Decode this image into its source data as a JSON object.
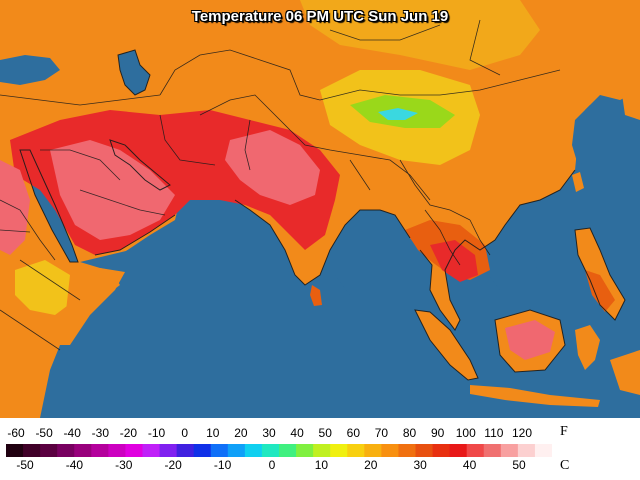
{
  "title": "Temperature 06 PM UTC Sun Jun 19",
  "colors": {
    "ocean": "#2e6e9e",
    "border": "#1a1a1a",
    "land_orange": "#f28a1a",
    "land_darkorange": "#e85f10",
    "land_red": "#e82a2a",
    "land_pink": "#f06870",
    "land_yellow": "#f2c21a",
    "land_green": "#9ad81a",
    "land_cyan": "#3ad8e0"
  },
  "legend": {
    "f_unit": "F",
    "c_unit": "C",
    "f_labels": [
      "-60",
      "-50",
      "-40",
      "-30",
      "-20",
      "-10",
      "0",
      "10",
      "20",
      "30",
      "40",
      "50",
      "60",
      "70",
      "80",
      "90",
      "100",
      "110",
      "120"
    ],
    "c_labels": [
      "-50",
      "-40",
      "-30",
      "-20",
      "-10",
      "0",
      "10",
      "20",
      "30",
      "40",
      "50"
    ],
    "bar_colors": [
      "#200010",
      "#400028",
      "#5a0040",
      "#780060",
      "#98007c",
      "#b4009c",
      "#cc00c0",
      "#e000e0",
      "#c020f8",
      "#8020f0",
      "#4020e0",
      "#1030e8",
      "#1070f8",
      "#10a0f8",
      "#10d0f0",
      "#20e8c0",
      "#40f080",
      "#80f040",
      "#c0f020",
      "#f0f010",
      "#f8d010",
      "#f8b010",
      "#f89010",
      "#f07010",
      "#e85010",
      "#e83010",
      "#e81818",
      "#f04848",
      "#f07070",
      "#f8a0a0",
      "#fcd0d0",
      "#fff0f0"
    ]
  }
}
